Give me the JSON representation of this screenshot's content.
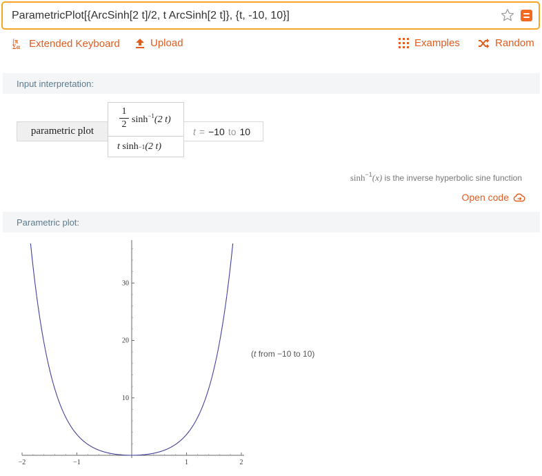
{
  "search": {
    "query": "ParametricPlot[{ArcSinh[2 t]/2, t ArcSinh[2 t]}, {t, -10, 10}]"
  },
  "toolbar": {
    "extended_keyboard": "Extended Keyboard",
    "upload": "Upload",
    "examples": "Examples",
    "random": "Random"
  },
  "pods": {
    "input_interpretation": {
      "title": "Input interpretation:",
      "label": "parametric plot",
      "x_component": {
        "numerator": "1",
        "denominator": "2",
        "expr": "sinh",
        "sup": "−1",
        "arg": "(2 t)"
      },
      "y_component": {
        "t": "t",
        "expr": "sinh",
        "sup": "−1",
        "arg": "(2 t)"
      },
      "range": {
        "var": "t",
        "eq": "=",
        "from": "−10",
        "to_word": "to",
        "to": "10"
      },
      "note_fn": "sinh",
      "note_sup": "−1",
      "note_arg": "(x)",
      "note_text": "is the inverse hyperbolic sine function",
      "open_code": "Open code"
    },
    "parametric_plot": {
      "title": "Parametric plot:",
      "caption_open": "(",
      "caption_var": "t",
      "caption_rest": "from −10 to 10)"
    }
  },
  "chart_data": {
    "type": "line",
    "title": "",
    "xlabel": "",
    "ylabel": "",
    "xlim": [
      -2,
      2
    ],
    "ylim": [
      0,
      37
    ],
    "x_ticks": [
      -2,
      -1,
      1,
      2
    ],
    "x_tick_labels": [
      "−2",
      "−1",
      "1",
      "2"
    ],
    "y_ticks": [
      10,
      20,
      30
    ],
    "y_tick_labels": [
      "10",
      "20",
      "30"
    ],
    "grid": false,
    "series": [
      {
        "x_expr": "asinh(2t)/2",
        "y_expr": "t*asinh(2t)",
        "t_range": [
          -10,
          10
        ],
        "color": "#3f3d99"
      }
    ]
  },
  "colors": {
    "accent": "#e05c1f",
    "search_border": "#f5a623",
    "pod_header_bg": "#f3f5f7",
    "pod_header_text": "#5b7a8c"
  }
}
